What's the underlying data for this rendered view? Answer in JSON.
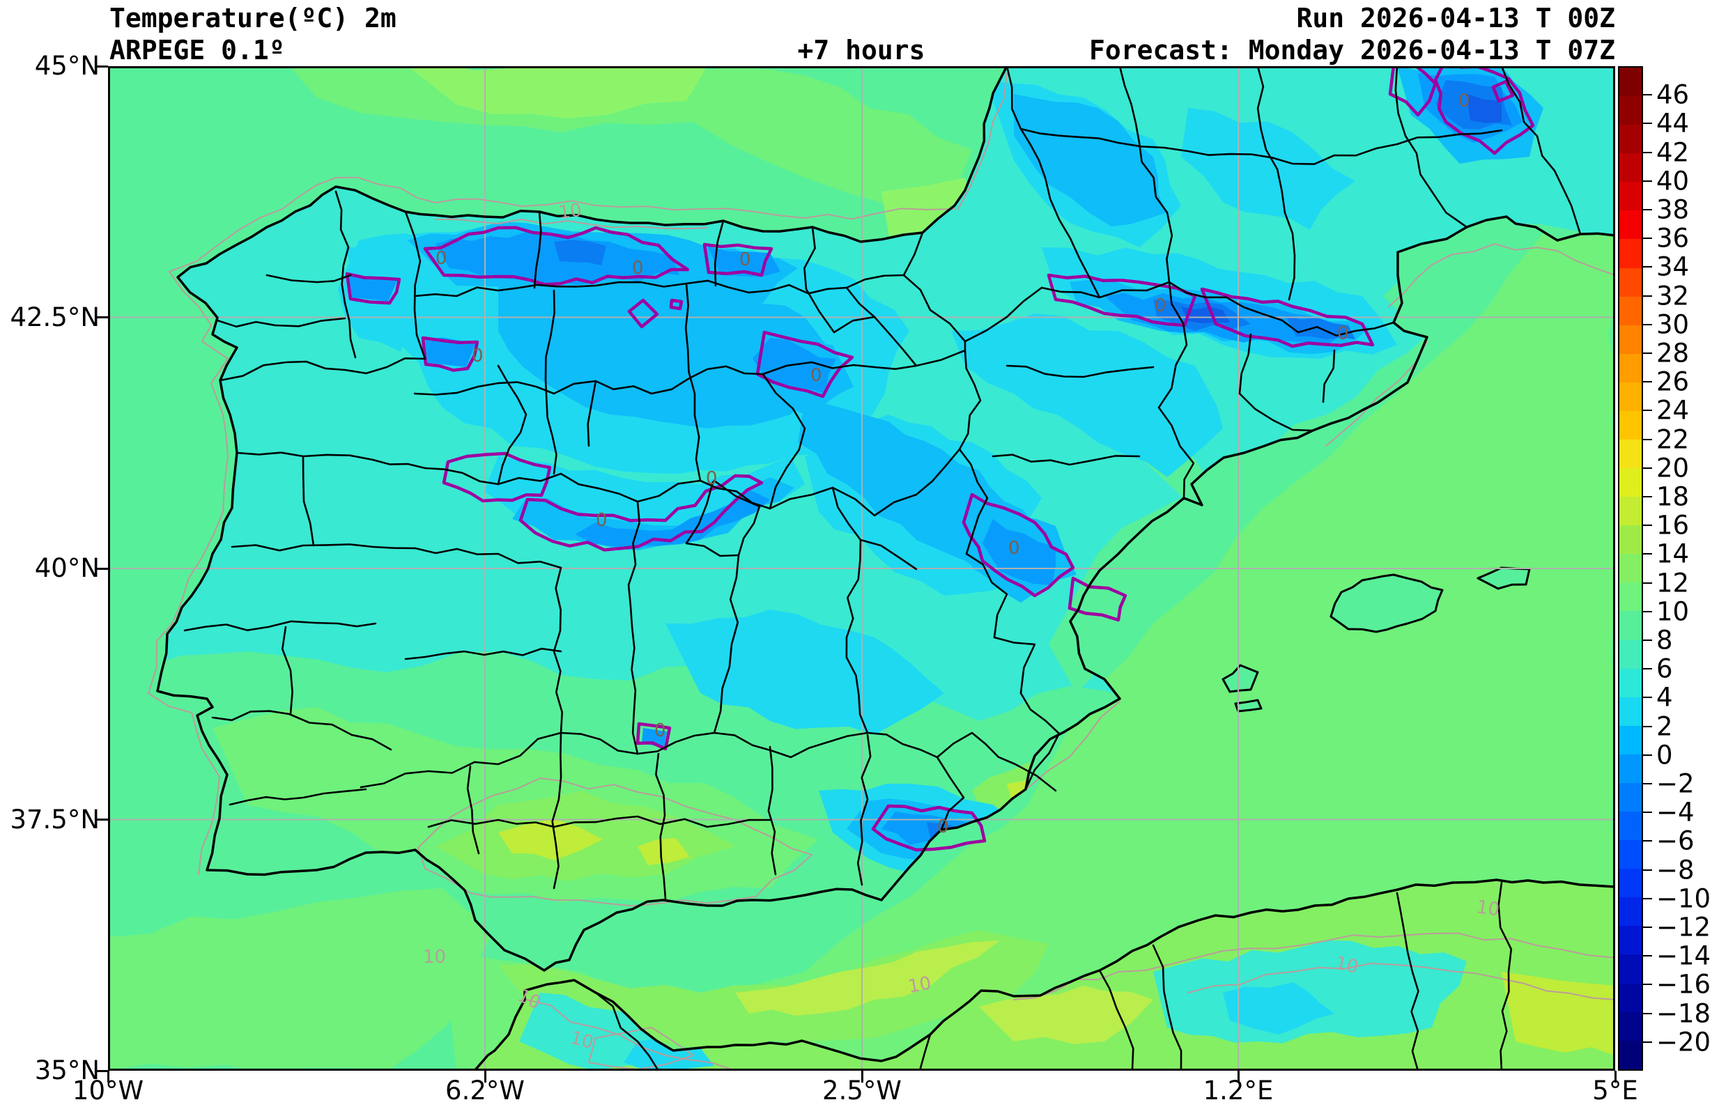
{
  "header": {
    "variable": "Temperature(ºC) 2m",
    "model": "ARPEGE 0.1º",
    "lead_time": "+7 hours",
    "run": "Run 2026-04-13 T 00Z",
    "forecast": "Forecast: Monday 2026-04-13 T 07Z"
  },
  "axes": {
    "y_tick_labels": [
      "45°N",
      "42.5°N",
      "40°N",
      "37.5°N",
      "35°N"
    ],
    "x_tick_labels": [
      "10°W",
      "6.2°W",
      "2.5°W",
      "1.2°E",
      "5°E"
    ]
  },
  "colorbar": {
    "unit": "ºC",
    "tick_labels": [
      "46",
      "44",
      "42",
      "40",
      "38",
      "36",
      "34",
      "32",
      "30",
      "28",
      "26",
      "24",
      "22",
      "20",
      "18",
      "16",
      "14",
      "12",
      "10",
      "8",
      "6",
      "4",
      "2",
      "0",
      "−2",
      "−4",
      "−6",
      "−8",
      "−10",
      "−12",
      "−14",
      "−16",
      "−18",
      "−20"
    ],
    "segment_colors_top_to_bottom": [
      "#7f0000",
      "#900000",
      "#a40000",
      "#bf0000",
      "#d90000",
      "#f40000",
      "#ff2200",
      "#ff4800",
      "#ff6600",
      "#ff8200",
      "#ff9c00",
      "#ffb000",
      "#ffc400",
      "#f5e216",
      "#e0ee1e",
      "#c3ec32",
      "#a0ea48",
      "#84ef63",
      "#70f37c",
      "#58ef9a",
      "#43ecba",
      "#2ce8d8",
      "#18d8f2",
      "#00b8ff",
      "#0098ff",
      "#007dff",
      "#0063ff",
      "#004dff",
      "#0038f8",
      "#0026e8",
      "#0016d2",
      "#000cb8",
      "#0006a2",
      "#00038c",
      "#000078"
    ]
  },
  "map_annotations": {
    "zero_isotherm_label": "0",
    "ten_isotherm_label": "10"
  },
  "palette": {
    "background": "#ffffff",
    "sea_atlantic_teal": "#58ef9a",
    "sea_mid_green": "#6ff17c",
    "sea_light_green": "#8df46a",
    "sea_warm_green": "#84ef63",
    "sea_yellow_green": "#b9ee4d",
    "land_mild": "#39e9d2",
    "warm_yellow_green": "#c0ec3a",
    "cool_cyan": "#1fd9f1",
    "cold_light_blue": "#0fbdf8",
    "cold_blue": "#089dfd",
    "cold_core_blue": "#0b7df2",
    "coldest_blue": "#0f5fe8",
    "zero_isotherm_magenta": "#a000a0",
    "ten_contour_gray": "#bb9c9c",
    "contour_zero_label_color": "#7a6050",
    "border_black": "#000000",
    "grid_gray": "#b0b0b0"
  }
}
